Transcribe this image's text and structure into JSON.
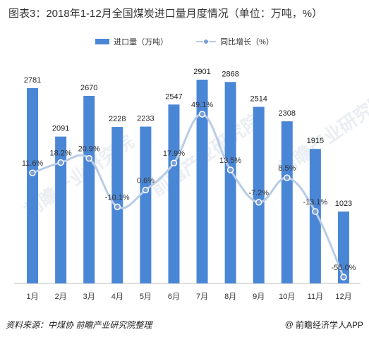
{
  "title": "图表3：2018年1-12月全国煤炭进口量月度情况（单位：万吨，%）",
  "legend": {
    "bar_label": "进口量（万吨）",
    "line_label": "同比增长（%）"
  },
  "colors": {
    "bar": "#4a86d6",
    "line": "#b8cce6",
    "marker": "#7aa0d4"
  },
  "footer": {
    "source": "资料来源：中煤协 前瞻产业研究院整理",
    "brand_symbol": "@",
    "brand": "前瞻经济学人APP"
  },
  "watermark": "前瞻产业研究院",
  "chart_data": {
    "type": "bar",
    "categories": [
      "1月",
      "2月",
      "3月",
      "4月",
      "5月",
      "6月",
      "7月",
      "8月",
      "9月",
      "10月",
      "11月",
      "12月"
    ],
    "series": [
      {
        "name": "进口量（万吨）",
        "type": "bar",
        "values": [
          2781,
          2091,
          2670,
          2228,
          2233,
          2547,
          2901,
          2868,
          2514,
          2308,
          1915,
          1023
        ],
        "labels": [
          "2781",
          "2091",
          "2670",
          "2228",
          "2233",
          "2547",
          "2901",
          "2868",
          "2514",
          "2308",
          "1915",
          "1023"
        ]
      },
      {
        "name": "同比增长（%）",
        "type": "line",
        "values": [
          11.6,
          18.2,
          20.9,
          -10.1,
          0.6,
          17.9,
          49.1,
          13.5,
          -7.2,
          8.5,
          -13.1,
          -55.0
        ],
        "labels": [
          "11.6%",
          "18.2%",
          "20.9%",
          "-10.1%",
          "0.6%",
          "17.9%",
          "49.1%",
          "13.5%",
          "-7.2%",
          "8.5%",
          "-13.1%",
          "-55.0%"
        ]
      }
    ],
    "bar_range": [
      0,
      2901
    ],
    "line_range": [
      -55.0,
      49.1
    ],
    "grid": false,
    "legend_position": "top"
  }
}
